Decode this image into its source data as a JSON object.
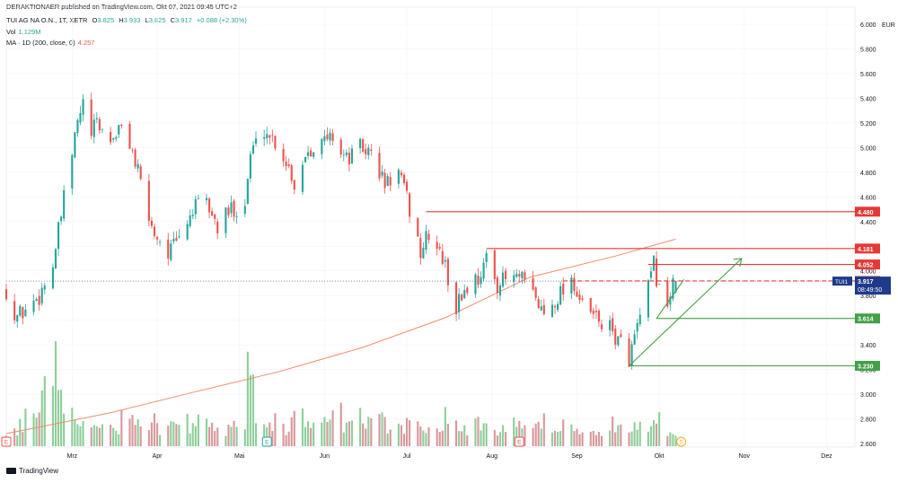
{
  "header": {
    "published": "DERAKTIONAER published on TradingView.com, Okt 07, 2021 09:45 UTC+2",
    "symbol": "TUI AG NA O.N., 1T, XETR",
    "ohlc": {
      "o_label": "O",
      "o": "3.825",
      "h_label": "H",
      "h": "3.933",
      "l_label": "L",
      "l": "3.825",
      "c_label": "C",
      "c": "3.917",
      "chg": "+0.088 (+2.30%)"
    },
    "vol_label": "Vol",
    "vol": "1.129M",
    "ma_label": "MA · 1D (200, close, 0)",
    "ma_value": "4.257"
  },
  "watermark": "TradingView",
  "colors": {
    "up": "#26a69a",
    "down": "#ef5350",
    "up_vol": "#8fcf9a",
    "down_vol": "#d9999c",
    "ma": "#f28b6d",
    "resistance": "#e53935",
    "support": "#43a047",
    "price_tag": "#1e3a8a",
    "text": "#131722",
    "grid": "#f0f3fa"
  },
  "chart_data": {
    "type": "candlestick",
    "currency": "EUR",
    "y_ticks": [
      "6.000",
      "5.800",
      "5.600",
      "5.400",
      "5.200",
      "5.000",
      "4.800",
      "4.600",
      "4.400",
      "4.200",
      "4.000",
      "3.800",
      "3.600",
      "3.400",
      "3.200",
      "3.000",
      "2.800",
      "2.600"
    ],
    "y_range": [
      2.6,
      6.0
    ],
    "x_labels": [
      {
        "label": "Mrz",
        "date": "2021-03-01"
      },
      {
        "label": "Apr",
        "date": "2021-04-01"
      },
      {
        "label": "Mai",
        "date": "2021-05-01"
      },
      {
        "label": "Jun",
        "date": "2021-06-01"
      },
      {
        "label": "Jul",
        "date": "2021-07-01"
      },
      {
        "label": "Aug",
        "date": "2021-08-01"
      },
      {
        "label": "Sep",
        "date": "2021-09-01"
      },
      {
        "label": "Okt",
        "date": "2021-10-01"
      },
      {
        "label": "Nov",
        "date": "2021-11-01"
      },
      {
        "label": "Dez",
        "date": "2021-12-01"
      }
    ],
    "x_range": [
      "2021-02-05",
      "2021-12-10"
    ],
    "price_path": [
      [
        "2021-02-05",
        3.85
      ],
      [
        "2021-02-08",
        3.62
      ],
      [
        "2021-02-12",
        3.68
      ],
      [
        "2021-02-17",
        3.8
      ],
      [
        "2021-02-22",
        4.05
      ],
      [
        "2021-02-25",
        4.45
      ],
      [
        "2021-03-01",
        4.95
      ],
      [
        "2021-03-03",
        5.2
      ],
      [
        "2021-03-05",
        5.35
      ],
      [
        "2021-03-08",
        5.1
      ],
      [
        "2021-03-10",
        5.2
      ],
      [
        "2021-03-15",
        5.05
      ],
      [
        "2021-03-18",
        5.15
      ],
      [
        "2021-03-22",
        5.05
      ],
      [
        "2021-03-26",
        4.7
      ],
      [
        "2021-03-30",
        4.35
      ],
      [
        "2021-04-05",
        4.15
      ],
      [
        "2021-04-09",
        4.25
      ],
      [
        "2021-04-14",
        4.5
      ],
      [
        "2021-04-19",
        4.55
      ],
      [
        "2021-04-23",
        4.35
      ],
      [
        "2021-04-28",
        4.5
      ],
      [
        "2021-05-03",
        4.55
      ],
      [
        "2021-05-05",
        4.95
      ],
      [
        "2021-05-10",
        5.15
      ],
      [
        "2021-05-14",
        5.05
      ],
      [
        "2021-05-19",
        4.85
      ],
      [
        "2021-05-21",
        4.7
      ],
      [
        "2021-05-26",
        5.0
      ],
      [
        "2021-06-01",
        5.05
      ],
      [
        "2021-06-04",
        5.1
      ],
      [
        "2021-06-09",
        4.9
      ],
      [
        "2021-06-14",
        5.0
      ],
      [
        "2021-06-18",
        4.95
      ],
      [
        "2021-06-23",
        4.7
      ],
      [
        "2021-06-28",
        4.8
      ],
      [
        "2021-07-02",
        4.5
      ],
      [
        "2021-07-06",
        4.15
      ],
      [
        "2021-07-09",
        4.3
      ],
      [
        "2021-07-14",
        4.1
      ],
      [
        "2021-07-19",
        3.7
      ],
      [
        "2021-07-22",
        3.85
      ],
      [
        "2021-07-27",
        3.95
      ],
      [
        "2021-07-30",
        4.08
      ],
      [
        "2021-08-03",
        3.9
      ],
      [
        "2021-08-09",
        3.95
      ],
      [
        "2021-08-12",
        3.92
      ],
      [
        "2021-08-16",
        3.8
      ],
      [
        "2021-08-20",
        3.65
      ],
      [
        "2021-08-25",
        3.8
      ],
      [
        "2021-08-30",
        3.95
      ],
      [
        "2021-09-03",
        3.7
      ],
      [
        "2021-09-08",
        3.62
      ],
      [
        "2021-09-14",
        3.5
      ],
      [
        "2021-09-20",
        3.3
      ],
      [
        "2021-09-22",
        3.45
      ],
      [
        "2021-09-27",
        3.85
      ],
      [
        "2021-09-29",
        4.05
      ],
      [
        "2021-10-01",
        3.85
      ],
      [
        "2021-10-04",
        3.75
      ],
      [
        "2021-10-07",
        3.917
      ]
    ],
    "ma_200": [
      [
        "2021-02-05",
        2.68
      ],
      [
        "2021-03-15",
        2.85
      ],
      [
        "2021-04-15",
        3.02
      ],
      [
        "2021-05-15",
        3.18
      ],
      [
        "2021-06-15",
        3.38
      ],
      [
        "2021-07-15",
        3.62
      ],
      [
        "2021-08-15",
        3.95
      ],
      [
        "2021-09-15",
        4.12
      ],
      [
        "2021-10-07",
        4.257
      ]
    ],
    "volume_approx_m": [
      0.5,
      0.7,
      1.0,
      1.5,
      2.5,
      1.8,
      1.2,
      0.9,
      0.7,
      0.6,
      0.8,
      0.5,
      0.9,
      0.7,
      0.6,
      0.8,
      0.5,
      0.7,
      0.9,
      0.6,
      1.1,
      0.7,
      0.5,
      0.8,
      0.6,
      2.9,
      0.7,
      0.6,
      0.8,
      0.5,
      0.9,
      0.7,
      0.6,
      0.8,
      1.0,
      0.6,
      0.9,
      0.7,
      0.8,
      1.2,
      0.6,
      0.5,
      0.8,
      0.7,
      0.6,
      0.5,
      0.9,
      0.6,
      0.5,
      0.7,
      0.6,
      0.5,
      0.6,
      0.7,
      0.5,
      0.6,
      0.8,
      0.6,
      0.7,
      0.5,
      0.4,
      0.6,
      0.5,
      0.7,
      0.5,
      0.6,
      0.7,
      0.5,
      1.1,
      0.5,
      0.4
    ],
    "levels": [
      {
        "value": 4.48,
        "label": "4.480",
        "kind": "resistance",
        "from": "2021-07-08"
      },
      {
        "value": 4.181,
        "label": "4.181",
        "kind": "resistance",
        "from": "2021-07-30"
      },
      {
        "value": 4.052,
        "label": "4.052",
        "kind": "resistance",
        "from": "2021-09-27"
      },
      {
        "value": 3.918,
        "label": "3.918",
        "kind": "resistance_dashed",
        "from": "2021-08-27"
      },
      {
        "value": 3.614,
        "label": "3.614",
        "kind": "support",
        "from": "2021-09-30"
      },
      {
        "value": 3.23,
        "label": "3.230",
        "kind": "support",
        "from": "2021-09-20"
      }
    ],
    "trendlines": [
      {
        "from": [
          "2021-09-20",
          3.23
        ],
        "to": [
          "2021-10-31",
          4.1
        ],
        "kind": "support_arrow"
      },
      {
        "from": [
          "2021-09-30",
          3.614
        ],
        "to": [
          "2021-10-10",
          3.93
        ],
        "kind": "support"
      }
    ],
    "last_price": {
      "symbol": "TUI1",
      "value": "3.917",
      "time": "08:49:50"
    },
    "event_markers": [
      {
        "date": "2021-02-05",
        "letter": "E",
        "kind": "earnings"
      },
      {
        "date": "2021-05-11",
        "letter": "E",
        "kind": "earnings"
      },
      {
        "date": "2021-08-11",
        "letter": "E",
        "kind": "earnings"
      },
      {
        "date": "2021-10-09",
        "letter": "S",
        "kind": "split"
      }
    ]
  }
}
